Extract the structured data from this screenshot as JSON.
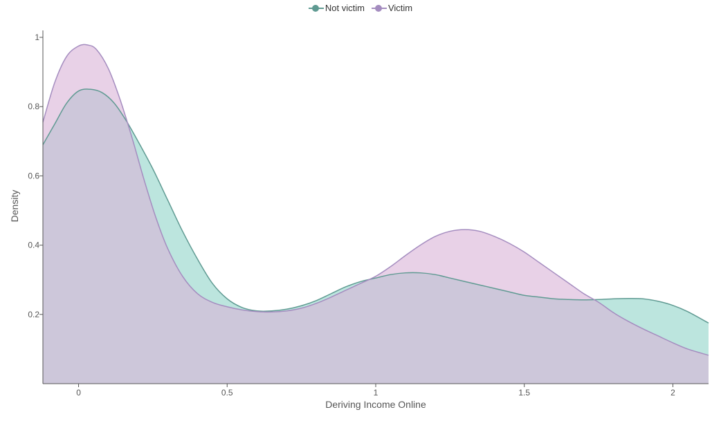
{
  "chart_data": {
    "type": "area",
    "xlabel": "Deriving Income Online",
    "ylabel": "Density",
    "xlim": [
      -0.12,
      2.12
    ],
    "ylim": [
      0,
      1.02
    ],
    "x_ticks": [
      {
        "value": 0,
        "label": "0"
      },
      {
        "value": 0.5,
        "label": "0.5"
      },
      {
        "value": 1,
        "label": "1"
      },
      {
        "value": 1.5,
        "label": "1.5"
      },
      {
        "value": 2,
        "label": "2"
      }
    ],
    "y_ticks": [
      {
        "value": 0.2,
        "label": "0.2"
      },
      {
        "value": 0.4,
        "label": "0.4"
      },
      {
        "value": 0.6,
        "label": "0.6"
      },
      {
        "value": 0.8,
        "label": "0.8"
      },
      {
        "value": 1.0,
        "label": "1"
      }
    ],
    "legend_position": "top-center",
    "grid": false,
    "series": [
      {
        "name": "Not victim",
        "line_color": "#5f9a92",
        "fill_color": "#8fd3c8",
        "x": [
          -0.12,
          -0.08,
          -0.04,
          0,
          0.04,
          0.08,
          0.12,
          0.16,
          0.2,
          0.25,
          0.3,
          0.35,
          0.4,
          0.45,
          0.5,
          0.55,
          0.6,
          0.65,
          0.7,
          0.75,
          0.8,
          0.85,
          0.9,
          0.95,
          1.0,
          1.05,
          1.1,
          1.15,
          1.2,
          1.25,
          1.3,
          1.35,
          1.4,
          1.45,
          1.5,
          1.55,
          1.6,
          1.65,
          1.7,
          1.75,
          1.8,
          1.85,
          1.9,
          1.95,
          2.0,
          2.05,
          2.12
        ],
        "values": [
          0.69,
          0.75,
          0.81,
          0.845,
          0.85,
          0.84,
          0.81,
          0.76,
          0.7,
          0.62,
          0.53,
          0.44,
          0.36,
          0.29,
          0.245,
          0.22,
          0.21,
          0.21,
          0.215,
          0.225,
          0.24,
          0.26,
          0.28,
          0.295,
          0.305,
          0.315,
          0.32,
          0.32,
          0.315,
          0.305,
          0.295,
          0.285,
          0.275,
          0.265,
          0.255,
          0.25,
          0.245,
          0.243,
          0.242,
          0.243,
          0.245,
          0.246,
          0.245,
          0.238,
          0.226,
          0.208,
          0.175
        ]
      },
      {
        "name": "Victim",
        "line_color": "#a48cbf",
        "fill_color": "#d9b2d7",
        "x": [
          -0.12,
          -0.08,
          -0.04,
          0,
          0.03,
          0.06,
          0.1,
          0.14,
          0.18,
          0.22,
          0.26,
          0.3,
          0.35,
          0.4,
          0.45,
          0.5,
          0.55,
          0.6,
          0.65,
          0.7,
          0.75,
          0.8,
          0.85,
          0.9,
          0.95,
          1.0,
          1.05,
          1.1,
          1.15,
          1.2,
          1.25,
          1.3,
          1.35,
          1.4,
          1.45,
          1.5,
          1.55,
          1.6,
          1.65,
          1.7,
          1.75,
          1.8,
          1.85,
          1.9,
          1.95,
          2.0,
          2.05,
          2.12
        ],
        "values": [
          0.755,
          0.87,
          0.945,
          0.975,
          0.978,
          0.965,
          0.91,
          0.82,
          0.71,
          0.59,
          0.48,
          0.39,
          0.31,
          0.26,
          0.235,
          0.222,
          0.213,
          0.208,
          0.207,
          0.21,
          0.218,
          0.232,
          0.25,
          0.27,
          0.29,
          0.31,
          0.338,
          0.37,
          0.4,
          0.425,
          0.44,
          0.445,
          0.44,
          0.425,
          0.405,
          0.38,
          0.35,
          0.32,
          0.29,
          0.26,
          0.235,
          0.205,
          0.18,
          0.158,
          0.138,
          0.118,
          0.1,
          0.082
        ]
      }
    ]
  }
}
